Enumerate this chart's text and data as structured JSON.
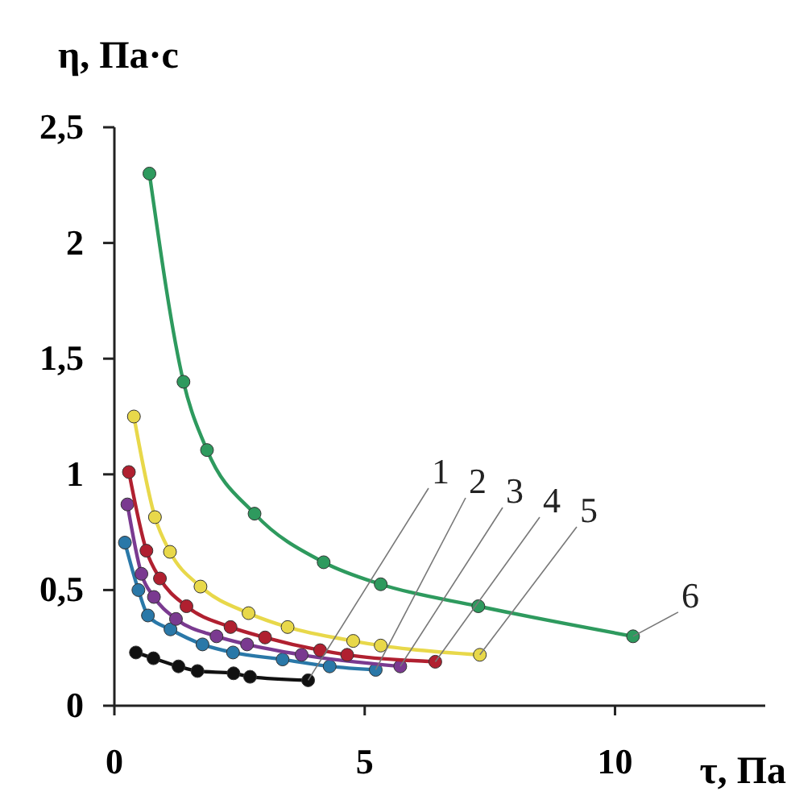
{
  "chart_data": {
    "type": "line",
    "xlabel": "τ, Па",
    "ylabel": "η, Па·с",
    "xlim": [
      0,
      13
    ],
    "ylim": [
      0,
      2.5
    ],
    "xticks": [
      0,
      5,
      10
    ],
    "yticks": [
      0,
      {
        "value": 0.5,
        "label": "0,5"
      },
      1,
      {
        "value": 1.5,
        "label": "1,5"
      },
      2,
      {
        "value": 2.5,
        "label": "2,5"
      }
    ],
    "grid": false,
    "marker": "circle",
    "line_style": "solid",
    "series": [
      {
        "name": "1",
        "color": "#111111",
        "x": [
          0.43,
          0.78,
          1.28,
          1.66,
          2.38,
          2.71,
          3.87
        ],
        "values": [
          0.23,
          0.205,
          0.17,
          0.15,
          0.14,
          0.125,
          0.11
        ]
      },
      {
        "name": "2",
        "color": "#2a78a8",
        "x": [
          0.21,
          0.48,
          0.67,
          1.12,
          1.76,
          2.37,
          3.36,
          4.3,
          5.22
        ],
        "values": [
          0.705,
          0.5,
          0.39,
          0.33,
          0.265,
          0.23,
          0.2,
          0.17,
          0.155
        ]
      },
      {
        "name": "3",
        "color": "#7a3a90",
        "x": [
          0.26,
          0.54,
          0.79,
          1.23,
          2.04,
          2.65,
          3.74,
          5.71
        ],
        "values": [
          0.87,
          0.57,
          0.47,
          0.375,
          0.3,
          0.265,
          0.22,
          0.17
        ]
      },
      {
        "name": "4",
        "color": "#b02030",
        "x": [
          0.29,
          0.64,
          0.91,
          1.44,
          2.32,
          3.01,
          4.11,
          4.65,
          6.41
        ],
        "values": [
          1.01,
          0.67,
          0.55,
          0.43,
          0.34,
          0.295,
          0.24,
          0.22,
          0.19
        ]
      },
      {
        "name": "5",
        "color": "#e8d84a",
        "x": [
          0.39,
          0.81,
          1.11,
          1.72,
          2.68,
          3.46,
          4.77,
          5.32,
          7.3
        ],
        "values": [
          1.25,
          0.815,
          0.665,
          0.515,
          0.4,
          0.34,
          0.28,
          0.26,
          0.22
        ]
      },
      {
        "name": "6",
        "color": "#2e9a5e",
        "x": [
          0.7,
          1.38,
          1.85,
          2.8,
          4.18,
          5.32,
          7.27,
          10.36
        ],
        "values": [
          2.3,
          1.4,
          1.105,
          0.83,
          0.62,
          0.525,
          0.43,
          0.3
        ]
      }
    ]
  }
}
